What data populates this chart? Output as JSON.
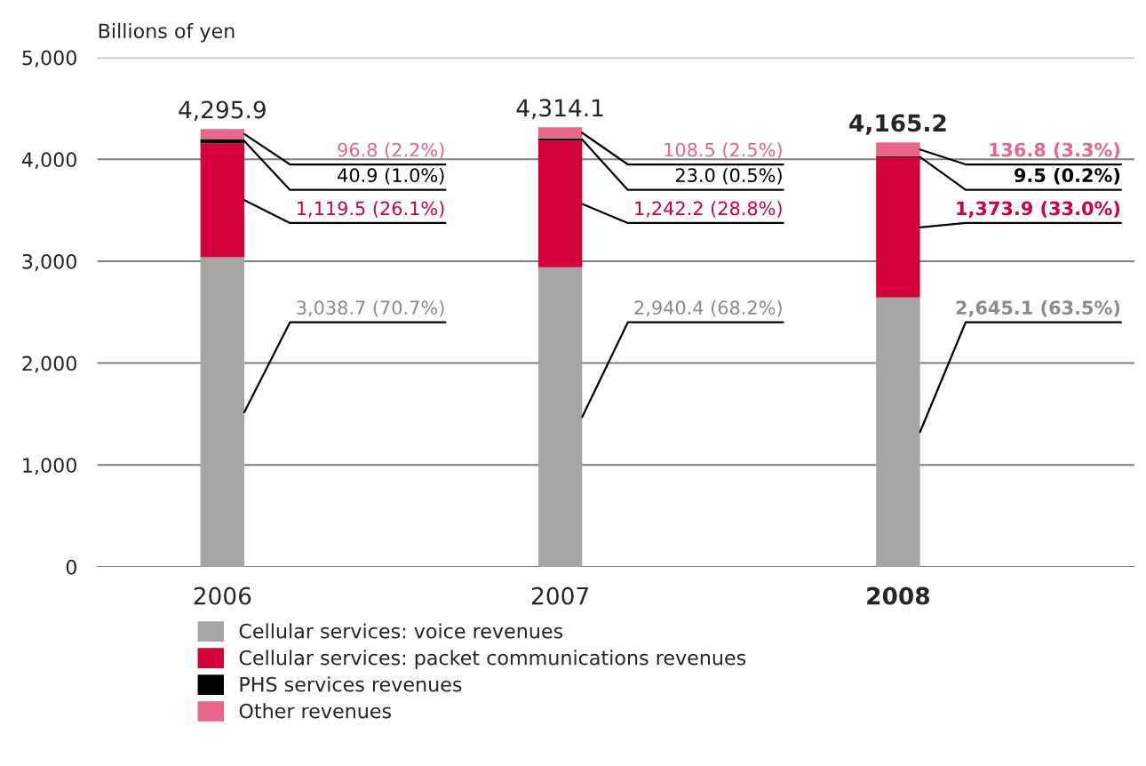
{
  "chart_data": {
    "type": "bar",
    "stacked": true,
    "ylabel": "Billions of yen",
    "categories": [
      "2006",
      "2007",
      "2008"
    ],
    "series": [
      {
        "name": "Cellular services: voice revenues",
        "color": "#a6a6a5",
        "values": [
          3038.7,
          2940.4,
          2645.1
        ],
        "value_labels": [
          "3,038.7 (70.7%)",
          "2,940.4 (68.2%)",
          "2,645.1 (63.5%)"
        ]
      },
      {
        "name": "Cellular services: packet communications revenues",
        "color": "#d4003c",
        "values": [
          1119.5,
          1242.2,
          1373.9
        ],
        "value_labels": [
          "1,119.5 (26.1%)",
          "1,242.2 (28.8%)",
          "1,373.9 (33.0%)"
        ]
      },
      {
        "name": "PHS services revenues",
        "color": "#000000",
        "values": [
          40.9,
          23.0,
          9.5
        ],
        "value_labels": [
          "40.9 (1.0%)",
          "23.0 (0.5%)",
          "9.5 (0.2%)"
        ]
      },
      {
        "name": "Other revenues",
        "color": "#e8668a",
        "values": [
          96.8,
          108.5,
          136.8
        ],
        "value_labels": [
          "96.8 (2.2%)",
          "108.5 (2.5%)",
          "136.8 (3.3%)"
        ]
      }
    ],
    "totals": [
      "4,295.9",
      "4,314.1",
      "4,165.2"
    ],
    "ylim": [
      0,
      5000
    ],
    "yticks": [
      0,
      {
        "value": 1000,
        "label": "1,000"
      },
      {
        "value": 2000,
        "label": "2,000"
      },
      {
        "value": 3000,
        "label": "3,000"
      },
      {
        "value": 4000,
        "label": "4,000"
      },
      {
        "value": 5000,
        "label": "5,000"
      }
    ],
    "grid": "y",
    "legend": "bottom"
  }
}
